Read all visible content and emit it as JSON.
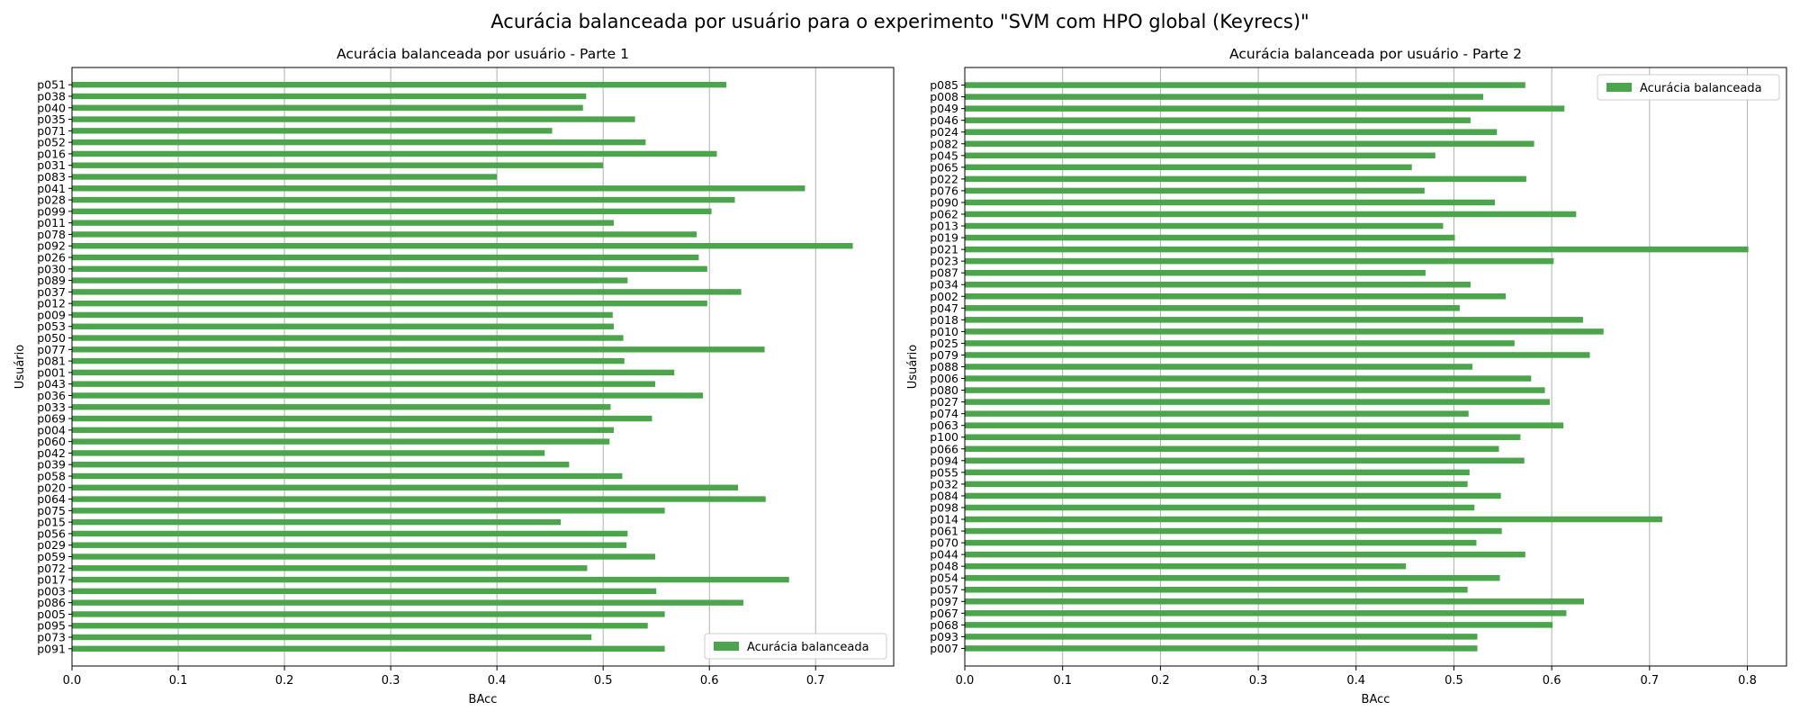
{
  "figure": {
    "title": "Acurácia balanceada por usuário para o experimento \"SVM com HPO global (Keyrecs)\""
  },
  "chart_data": [
    {
      "type": "bar",
      "orientation": "horizontal",
      "title": "Acurácia balanceada por usuário - Parte 1",
      "xlabel": "BAcc",
      "ylabel": "Usuário",
      "xlim": [
        0,
        0.7735
      ],
      "xticks": [
        "0.0",
        "0.1",
        "0.2",
        "0.3",
        "0.4",
        "0.5",
        "0.6",
        "0.7"
      ],
      "grid": "x",
      "legend": "lower-right",
      "color": "#4ca54c",
      "series": [
        {
          "name": "Acurácia balanceada"
        }
      ],
      "categories": [
        "p051",
        "p038",
        "p040",
        "p035",
        "p071",
        "p052",
        "p016",
        "p031",
        "p083",
        "p041",
        "p028",
        "p099",
        "p011",
        "p078",
        "p092",
        "p026",
        "p030",
        "p089",
        "p037",
        "p012",
        "p009",
        "p053",
        "p050",
        "p077",
        "p081",
        "p001",
        "p043",
        "p036",
        "p033",
        "p069",
        "p004",
        "p060",
        "p042",
        "p039",
        "p058",
        "p020",
        "p064",
        "p075",
        "p015",
        "p056",
        "p029",
        "p059",
        "p072",
        "p017",
        "p003",
        "p086",
        "p005",
        "p095",
        "p073",
        "p091"
      ],
      "values": [
        0.616,
        0.484,
        0.481,
        0.53,
        0.452,
        0.54,
        0.607,
        0.5,
        0.4,
        0.69,
        0.624,
        0.602,
        0.51,
        0.588,
        0.735,
        0.59,
        0.598,
        0.523,
        0.63,
        0.598,
        0.509,
        0.51,
        0.519,
        0.652,
        0.52,
        0.567,
        0.549,
        0.594,
        0.507,
        0.546,
        0.51,
        0.506,
        0.445,
        0.468,
        0.518,
        0.627,
        0.653,
        0.558,
        0.46,
        0.523,
        0.522,
        0.549,
        0.485,
        0.675,
        0.55,
        0.632,
        0.558,
        0.542,
        0.489,
        0.558
      ]
    },
    {
      "type": "bar",
      "orientation": "horizontal",
      "title": "Acurácia balanceada por usuário - Parte 2",
      "xlabel": "BAcc",
      "ylabel": "Usuário",
      "xlim": [
        0,
        0.84
      ],
      "xticks": [
        "0.0",
        "0.1",
        "0.2",
        "0.3",
        "0.4",
        "0.5",
        "0.6",
        "0.7",
        "0.8"
      ],
      "grid": "x",
      "legend": "upper-right",
      "color": "#4ca54c",
      "series": [
        {
          "name": "Acurácia balanceada"
        }
      ],
      "categories": [
        "p085",
        "p008",
        "p049",
        "p046",
        "p024",
        "p082",
        "p045",
        "p065",
        "p022",
        "p076",
        "p090",
        "p062",
        "p013",
        "p019",
        "p021",
        "p023",
        "p087",
        "p034",
        "p002",
        "p047",
        "p018",
        "p010",
        "p025",
        "p079",
        "p088",
        "p006",
        "p080",
        "p027",
        "p074",
        "p063",
        "p100",
        "p066",
        "p094",
        "p055",
        "p032",
        "p084",
        "p098",
        "p014",
        "p061",
        "p070",
        "p044",
        "p048",
        "p054",
        "p057",
        "p097",
        "p067",
        "p068",
        "p093",
        "p007"
      ],
      "values": [
        0.573,
        0.53,
        0.613,
        0.517,
        0.544,
        0.582,
        0.481,
        0.457,
        0.574,
        0.47,
        0.542,
        0.625,
        0.489,
        0.501,
        0.801,
        0.602,
        0.471,
        0.517,
        0.553,
        0.506,
        0.632,
        0.653,
        0.562,
        0.639,
        0.519,
        0.579,
        0.593,
        0.598,
        0.515,
        0.612,
        0.568,
        0.546,
        0.572,
        0.516,
        0.514,
        0.548,
        0.521,
        0.713,
        0.549,
        0.523,
        0.573,
        0.451,
        0.547,
        0.514,
        0.633,
        0.615,
        0.601,
        0.524,
        0.524
      ]
    }
  ]
}
